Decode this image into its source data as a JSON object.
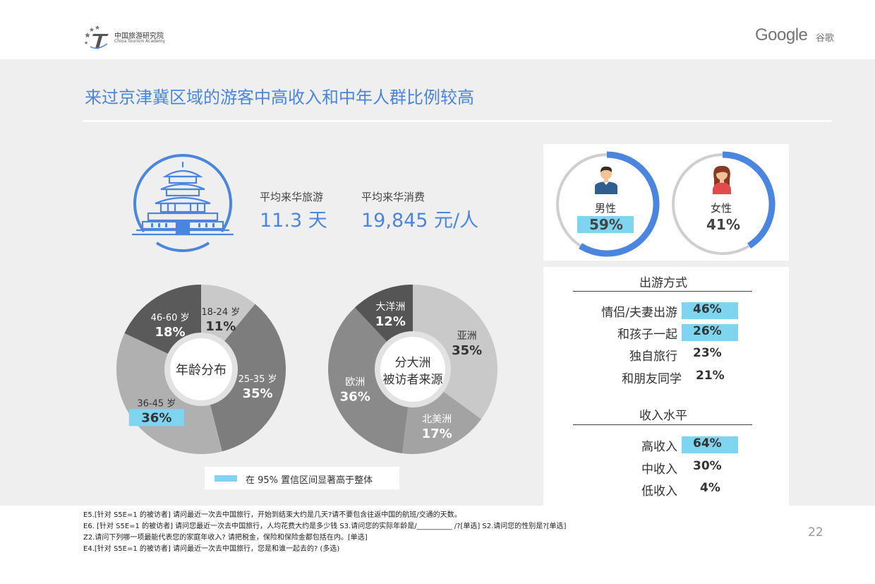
{
  "header": {
    "org_cn": "中国旅游研究院",
    "org_en": "China Tourism Academy",
    "google_logo": "Google",
    "google_cn": "谷歌"
  },
  "title": "来过京津冀区域的游客中高收入和中年人群比例较高",
  "stats": {
    "stay_label": "平均来华旅游",
    "stay_value": "11.3 天",
    "spend_label": "平均来华消费",
    "spend_value": "19,845 元/人"
  },
  "icons": {
    "temple": "temple-of-heaven-icon",
    "male": "man-avatar-icon",
    "female": "woman-avatar-icon"
  },
  "colors": {
    "accent_blue": "#4a86e0",
    "highlight": "#7fd4f0",
    "donut_greys": [
      "#c9c9c9",
      "#8a8a8a",
      "#b0b0b0",
      "#5e5e5e"
    ]
  },
  "chart_data": [
    {
      "type": "pie",
      "title": "年龄分布",
      "categories": [
        "18-24 岁",
        "25-35 岁",
        "36-45 岁",
        "46-60 岁"
      ],
      "values": [
        11,
        35,
        36,
        18
      ],
      "labels": [
        "11%",
        "35%",
        "36%",
        "18%"
      ],
      "highlighted": [
        "36-45 岁"
      ]
    },
    {
      "type": "pie",
      "title": "分大洲\n被访者来源",
      "title_lines": [
        "分大洲",
        "被访者来源"
      ],
      "categories": [
        "亚洲",
        "北美洲",
        "欧洲",
        "大洋洲"
      ],
      "values": [
        35,
        17,
        36,
        12
      ],
      "labels": [
        "35%",
        "17%",
        "36%",
        "12%"
      ]
    },
    {
      "type": "pie",
      "categories": [
        "男性",
        "女性"
      ],
      "values": [
        59,
        41
      ],
      "labels": [
        "59%",
        "41%"
      ],
      "highlighted": [
        "男性"
      ]
    },
    {
      "type": "table",
      "title": "出游方式",
      "rows": [
        {
          "label": "情侣/夫妻出游",
          "value": "46%",
          "highlight": true
        },
        {
          "label": "和孩子一起",
          "value": "26%",
          "highlight": true
        },
        {
          "label": "独自旅行",
          "value": "23%",
          "highlight": false
        },
        {
          "label": "和朋友同学",
          "value": "21%",
          "highlight": false
        }
      ]
    },
    {
      "type": "table",
      "title": "收入水平",
      "rows": [
        {
          "label": "高收入",
          "value": "64%",
          "highlight": true
        },
        {
          "label": "中收入",
          "value": "30%",
          "highlight": false
        },
        {
          "label": "低收入",
          "value": "4%",
          "highlight": false
        }
      ]
    }
  ],
  "legend": "在 95% 置信区间显著高于整体",
  "notes": [
    "E5.[针对 S5E=1 的被访者] 请问最近一次去中国旅行，开始到结束大约是几天?请不要包含往返中国的航班/交通的天数。",
    "E6. [针对 S5E=1 的被访者] 请问您最近一次去中国旅行，人均花费大约是多少钱 S3.请问您的实际年龄是/__________ /?[单选]  S2.请问您的性别是?[单选]",
    "Z2.请问下列哪一项最能代表您的家庭年收入? 请把税金，保险和保险金都包括在内。[单选]",
    "E4.[针对 S5E=1 的被访者] 请问最近一次去中国旅行，您是和谁一起去的? (多选)"
  ],
  "page_number": "22"
}
